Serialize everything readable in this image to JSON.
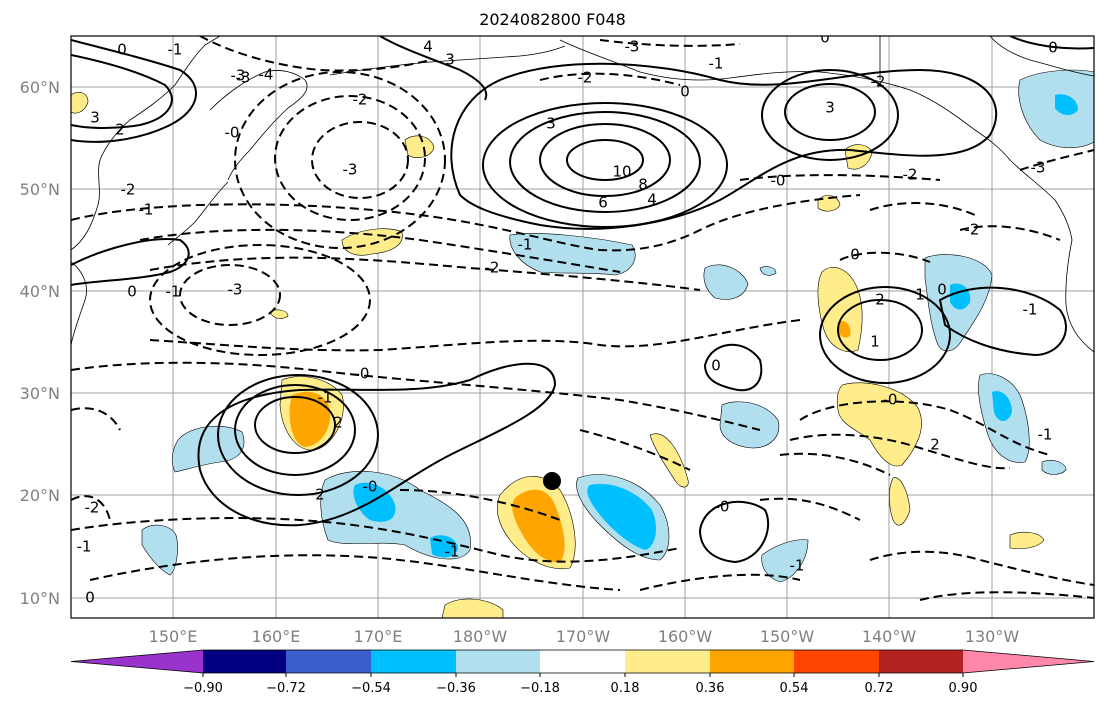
{
  "title": "2024082800 F048",
  "map": {
    "lat_labels": [
      "60°N",
      "50°N",
      "40°N",
      "30°N",
      "20°N",
      "10°N"
    ],
    "lon_labels": [
      "150°E",
      "160°E",
      "170°E",
      "180°W",
      "170°W",
      "160°W",
      "150°W",
      "140°W",
      "130°W"
    ],
    "contour_labels": [
      {
        "text": "0"
      },
      {
        "text": "-1"
      },
      {
        "text": "-4"
      },
      {
        "text": "-3"
      },
      {
        "text": "3"
      },
      {
        "text": "2"
      },
      {
        "text": "4"
      },
      {
        "text": "-3"
      },
      {
        "text": "3"
      },
      {
        "text": "-2"
      },
      {
        "text": "-1"
      },
      {
        "text": "0"
      },
      {
        "text": "0"
      },
      {
        "text": "-2"
      },
      {
        "text": "-3"
      },
      {
        "text": "-3"
      },
      {
        "text": "-2"
      },
      {
        "text": "-1"
      },
      {
        "text": "3"
      },
      {
        "text": "10"
      },
      {
        "text": "8"
      },
      {
        "text": "6"
      },
      {
        "text": "4"
      },
      {
        "text": "-0"
      },
      {
        "text": "-2"
      },
      {
        "text": "-2"
      },
      {
        "text": "3"
      },
      {
        "text": "0"
      },
      {
        "text": "-2"
      },
      {
        "text": "-3"
      },
      {
        "text": "-1"
      },
      {
        "text": "0"
      },
      {
        "text": "-1"
      },
      {
        "text": "-0"
      },
      {
        "text": "0"
      },
      {
        "text": "-3"
      },
      {
        "text": "-1"
      },
      {
        "text": "2"
      },
      {
        "text": "1"
      },
      {
        "text": "0"
      },
      {
        "text": "2"
      },
      {
        "text": "-1"
      },
      {
        "text": "0"
      },
      {
        "text": "-0"
      },
      {
        "text": "1"
      },
      {
        "text": "2"
      },
      {
        "text": "2"
      },
      {
        "text": "-0"
      },
      {
        "text": "-0"
      },
      {
        "text": "-2"
      },
      {
        "text": "-1"
      },
      {
        "text": "-2"
      },
      {
        "text": "-1"
      },
      {
        "text": "-1"
      },
      {
        "text": "0"
      },
      {
        "text": "-0"
      },
      {
        "text": "-1"
      }
    ],
    "marker_color": "#000000"
  },
  "colorbar": {
    "colors": [
      "#9933cc",
      "#000080",
      "#3a5fcd",
      "#00bfff",
      "#b2dfee",
      "#ffffff",
      "#ffec8b",
      "#ffa500",
      "#ff4500",
      "#b22222",
      "#ff88aa"
    ],
    "tick_labels": [
      "−0.90",
      "−0.72",
      "−0.54",
      "−0.36",
      "−0.18",
      "0.18",
      "0.36",
      "0.54",
      "0.72",
      "0.90"
    ]
  }
}
